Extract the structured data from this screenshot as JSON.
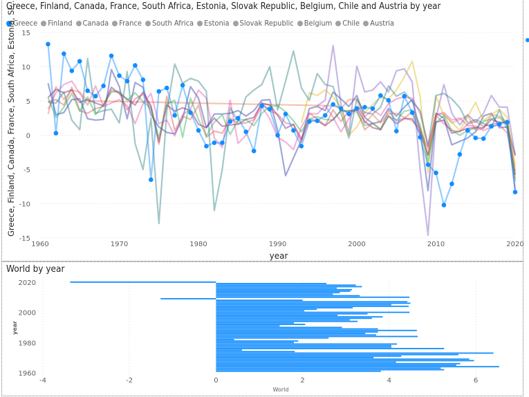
{
  "chart_data": [
    {
      "type": "line",
      "title": "Greece, Finland, Canada, France, South Africa, Estonia, Slovak Republic, Belgium, Chile and Austria by year",
      "xlabel": "year",
      "ylabel": "Greece, Finland, Canada, France, South Africa, Estonia, Sl...",
      "xlim": [
        1960,
        2020
      ],
      "ylim": [
        -15,
        15
      ],
      "xticks": [
        "1960",
        "1970",
        "1980",
        "1990",
        "2000",
        "2010",
        "2020"
      ],
      "yticks": [
        "15",
        "10",
        "5",
        "0",
        "-5",
        "-10",
        "-15"
      ],
      "grid": true,
      "legend_position": "top-left",
      "highlighted_series": "Greece",
      "x_start": 1961,
      "series": [
        {
          "name": "Greece",
          "color": "#118DFF",
          "values": [
            13.3,
            0.3,
            11.9,
            9.4,
            10.8,
            6.5,
            5.7,
            7.2,
            11.6,
            8.7,
            7.9,
            10.2,
            8.1,
            -6.5,
            6.4,
            6.9,
            2.9,
            7.3,
            3.3,
            0.7,
            -1.6,
            -1.1,
            -1.1,
            2.0,
            2.5,
            0.5,
            -2.3,
            4.3,
            3.8,
            0.0,
            3.1,
            0.7,
            -1.6,
            2.0,
            2.1,
            2.9,
            4.5,
            3.9,
            3.1,
            3.9,
            4.1,
            3.9,
            5.8,
            5.1,
            0.6,
            5.7,
            3.3,
            -0.3,
            -4.3,
            -5.5,
            -10.2,
            -7.1,
            -2.8,
            0.7,
            -0.4,
            -0.5,
            1.3,
            1.6,
            1.9,
            -8.3
          ]
        },
        {
          "name": "Finland",
          "color": "#12239E",
          "values": [
            7.6,
            3.0,
            3.3,
            5.2,
            5.3,
            2.4,
            2.2,
            2.3,
            9.6,
            7.1,
            2.4,
            7.7,
            7.0,
            3.0,
            1.2,
            0.4,
            0.2,
            2.4,
            7.1,
            5.4,
            1.1,
            3.1,
            3.1,
            3.2,
            3.6,
            2.8,
            3.6,
            5.1,
            5.2,
            0.7,
            -5.9,
            -3.3,
            -0.7,
            3.9,
            4.2,
            3.6,
            6.3,
            5.3,
            4.2,
            5.8,
            2.6,
            1.7,
            2.0,
            3.9,
            2.8,
            4.1,
            5.2,
            0.7,
            -8.1,
            3.2,
            2.5,
            -1.4,
            -0.9,
            -0.4,
            0.5,
            2.8,
            3.2,
            1.1,
            1.2,
            -2.9
          ]
        },
        {
          "name": "Canada",
          "color": "#E66C37",
          "values": [
            3.1,
            7.1,
            5.2,
            6.6,
            6.3,
            5.0,
            null,
            null,
            null,
            null,
            null,
            null,
            null,
            null,
            null,
            null,
            null,
            null,
            null,
            null,
            null,
            null,
            null,
            null,
            null,
            null,
            null,
            null,
            null,
            null,
            null,
            null,
            null,
            null,
            null,
            null,
            4.3,
            3.9,
            5.2,
            5.2,
            1.8,
            3.0,
            1.8,
            3.1,
            3.2,
            2.6,
            2.1,
            1.0,
            -2.9,
            3.1,
            3.1,
            1.8,
            2.3,
            2.9,
            0.7,
            1.0,
            3.0,
            2.8,
            1.9,
            -5.2
          ]
        },
        {
          "name": "France",
          "color": "#6B007B",
          "values": [
            5.5,
            6.7,
            6.2,
            6.6,
            4.8,
            5.2,
            4.7,
            4.3,
            7.0,
            6.1,
            5.3,
            4.4,
            6.3,
            4.3,
            -1.0,
            4.4,
            3.5,
            4.0,
            3.6,
            1.6,
            1.1,
            2.5,
            1.3,
            1.5,
            1.6,
            2.3,
            2.6,
            4.7,
            4.4,
            2.9,
            1.0,
            1.6,
            -0.6,
            2.3,
            2.1,
            1.4,
            2.3,
            3.6,
            3.4,
            3.9,
            2.0,
            1.1,
            0.8,
            2.8,
            1.7,
            2.4,
            2.4,
            0.3,
            -2.9,
            1.9,
            2.2,
            0.3,
            0.6,
            1.0,
            1.1,
            1.1,
            2.3,
            1.9,
            1.8,
            -7.9
          ]
        },
        {
          "name": "South Africa",
          "color": "#E044A7",
          "values": [
            3.8,
            6.2,
            7.4,
            7.9,
            6.1,
            4.4,
            7.2,
            4.2,
            4.7,
            5.2,
            4.3,
            1.7,
            4.6,
            6.1,
            1.7,
            2.2,
            -0.1,
            3.0,
            3.8,
            6.6,
            5.4,
            -0.4,
            -1.8,
            5.1,
            -1.2,
            0.0,
            2.1,
            4.2,
            2.4,
            -0.3,
            -1.0,
            -2.1,
            1.2,
            3.2,
            3.1,
            4.3,
            2.6,
            0.5,
            2.4,
            4.2,
            2.7,
            3.7,
            2.9,
            4.6,
            5.3,
            5.6,
            5.4,
            3.2,
            -1.5,
            3.0,
            3.3,
            2.2,
            2.5,
            1.4,
            1.3,
            0.7,
            1.2,
            1.5,
            0.3,
            -6.3
          ]
        },
        {
          "name": "Estonia",
          "color": "#744EC2",
          "values": [
            null,
            null,
            null,
            null,
            null,
            null,
            null,
            null,
            null,
            null,
            null,
            null,
            null,
            null,
            null,
            null,
            null,
            null,
            null,
            null,
            null,
            null,
            null,
            null,
            null,
            null,
            null,
            null,
            null,
            null,
            null,
            null,
            null,
            null,
            4.3,
            5.1,
            13.1,
            4.4,
            0.3,
            10.1,
            6.3,
            6.6,
            7.8,
            6.3,
            9.4,
            9.7,
            7.8,
            -5.1,
            -14.6,
            2.5,
            7.4,
            3.2,
            1.5,
            3.0,
            1.9,
            3.2,
            5.8,
            4.1,
            4.1,
            -3.0
          ]
        },
        {
          "name": "Slovak Republic",
          "color": "#D9B300",
          "values": [
            null,
            null,
            null,
            null,
            null,
            null,
            null,
            null,
            null,
            null,
            null,
            null,
            null,
            null,
            null,
            null,
            null,
            null,
            null,
            null,
            null,
            null,
            null,
            null,
            null,
            null,
            null,
            null,
            null,
            null,
            null,
            null,
            1.8,
            6.2,
            5.8,
            6.6,
            5.6,
            4.0,
            0.0,
            1.2,
            3.3,
            4.5,
            5.5,
            5.3,
            6.6,
            8.5,
            10.8,
            5.6,
            -5.5,
            5.7,
            2.9,
            1.9,
            0.7,
            2.7,
            4.8,
            2.1,
            3.0,
            3.8,
            2.6,
            -4.4
          ]
        },
        {
          "name": "Belgium",
          "color": "#D64550",
          "values": [
            4.9,
            5.2,
            4.4,
            7.0,
            3.6,
            3.2,
            3.9,
            4.2,
            6.6,
            6.2,
            3.7,
            5.3,
            6.0,
            4.1,
            -1.3,
            5.7,
            0.7,
            2.8,
            2.3,
            4.4,
            -0.3,
            0.6,
            0.3,
            2.5,
            1.7,
            1.8,
            2.3,
            4.7,
            3.5,
            3.1,
            1.8,
            1.5,
            -1.0,
            3.2,
            2.4,
            1.4,
            3.7,
            2.0,
            3.6,
            3.6,
            0.8,
            1.8,
            0.8,
            3.6,
            2.1,
            2.5,
            3.4,
            0.8,
            -2.0,
            2.9,
            1.7,
            0.7,
            0.5,
            1.6,
            2.0,
            1.3,
            1.6,
            1.8,
            2.1,
            -5.7
          ]
        },
        {
          "name": "Chile",
          "color": "#197278",
          "values": [
            4.8,
            4.7,
            6.3,
            2.2,
            0.8,
            11.2,
            3.2,
            3.6,
            3.8,
            1.8,
            9.3,
            -1.2,
            -5.0,
            2.5,
            -12.9,
            3.5,
            10.4,
            7.6,
            8.3,
            7.9,
            6.4,
            -11.0,
            -5.0,
            4.0,
            2.0,
            5.6,
            6.6,
            7.4,
            10.0,
            3.7,
            7.9,
            12.3,
            6.9,
            5.1,
            9.0,
            7.4,
            7.1,
            3.2,
            -0.4,
            5.3,
            3.3,
            3.1,
            4.1,
            7.2,
            5.7,
            6.3,
            4.9,
            3.6,
            -1.6,
            5.8,
            6.1,
            5.3,
            4.0,
            1.8,
            2.3,
            1.7,
            1.2,
            3.7,
            0.9,
            -5.8
          ]
        },
        {
          "name": "Austria",
          "color": "#1AAB40",
          "values": [
            5.5,
            2.6,
            4.1,
            6.1,
            3.5,
            5.6,
            3.0,
            4.5,
            6.3,
            6.4,
            5.1,
            6.2,
            4.9,
            3.9,
            -0.4,
            4.6,
            5.1,
            -0.3,
            5.4,
            2.3,
            -0.1,
            1.9,
            3.0,
            0.1,
            2.2,
            2.3,
            1.4,
            3.2,
            4.2,
            4.3,
            3.4,
            2.1,
            0.5,
            2.4,
            2.7,
            2.3,
            2.2,
            3.6,
            3.6,
            3.4,
            1.4,
            1.7,
            0.9,
            2.8,
            2.2,
            3.5,
            3.7,
            1.5,
            -3.8,
            1.8,
            2.9,
            0.7,
            0.0,
            0.7,
            1.0,
            2.0,
            2.4,
            2.6,
            1.5,
            -6.7
          ]
        }
      ]
    },
    {
      "type": "bar",
      "orientation": "horizontal",
      "title": "World by year",
      "xlabel": "World",
      "ylabel": "year",
      "xlim": [
        -4,
        6.9
      ],
      "ylim": [
        1960,
        2020
      ],
      "xticks": [
        "-4",
        "-2",
        "0",
        "2",
        "4",
        "6"
      ],
      "yticks": [
        "2020",
        "2000",
        "1980",
        "1960"
      ],
      "grid": true,
      "color": "#118DFF",
      "x_start": 1961,
      "values": [
        3.81,
        5.27,
        5.19,
        6.54,
        5.55,
        5.64,
        4.16,
        5.96,
        5.85,
        3.64,
        4.28,
        5.6,
        6.41,
        1.82,
        0.6,
        5.27,
        4.05,
        4.05,
        4.18,
        1.8,
        1.9,
        0.42,
        2.6,
        4.66,
        3.7,
        3.45,
        3.74,
        4.64,
        3.74,
        2.91,
        1.47,
        2.06,
        1.8,
        3.27,
        3.09,
        3.6,
        3.85,
        2.81,
        3.5,
        4.47,
        2.04,
        2.33,
        3.16,
        4.45,
        4.05,
        4.49,
        4.42,
        2.0,
        -1.28,
        4.47,
        3.32,
        2.7,
        2.86,
        3.1,
        3.14,
        2.79,
        3.37,
        3.23,
        2.55,
        -3.37
      ]
    }
  ]
}
